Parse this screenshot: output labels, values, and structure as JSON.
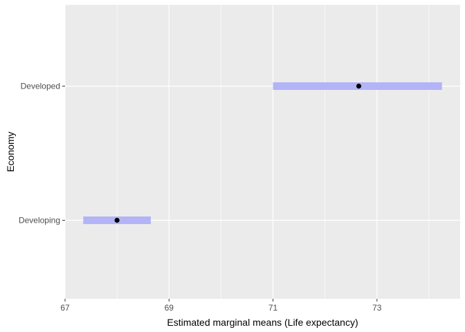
{
  "chart_data": {
    "type": "interval",
    "xlabel": "Estimated marginal means (Life expectancy)",
    "ylabel": "Economy",
    "xlim": [
      67,
      74.6
    ],
    "x_ticks": [
      67,
      69,
      71,
      73
    ],
    "categories": [
      "Developing",
      "Developed"
    ],
    "series": [
      {
        "points": [
          {
            "category": "Developing",
            "mean": 68.0,
            "lower": 67.35,
            "upper": 68.65
          },
          {
            "category": "Developed",
            "mean": 72.65,
            "lower": 71.0,
            "upper": 74.25
          }
        ]
      }
    ],
    "grid": true,
    "colors": {
      "panel": "#ebebeb",
      "grid": "#ffffff",
      "interval": "#b3b3f7",
      "point": "#000000"
    }
  }
}
